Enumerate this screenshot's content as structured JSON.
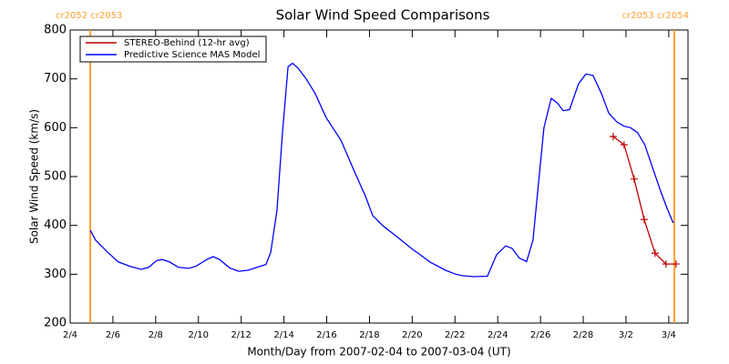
{
  "chart_data": {
    "type": "line",
    "title": "Solar Wind Speed Comparisons",
    "x_label": "Month/Day from 2007-02-04 to 2007-03-04 (UT)",
    "y_label": "Solar Wind Speed (km/s)",
    "xlim": [
      0,
      28.9
    ],
    "ylim": [
      200,
      800
    ],
    "xticks": [
      {
        "value": 0,
        "label": "2/4"
      },
      {
        "value": 2,
        "label": "2/6"
      },
      {
        "value": 4,
        "label": "2/8"
      },
      {
        "value": 6,
        "label": "2/10"
      },
      {
        "value": 8,
        "label": "2/12"
      },
      {
        "value": 10,
        "label": "2/14"
      },
      {
        "value": 12,
        "label": "2/16"
      },
      {
        "value": 14,
        "label": "2/18"
      },
      {
        "value": 16,
        "label": "2/20"
      },
      {
        "value": 18,
        "label": "2/22"
      },
      {
        "value": 20,
        "label": "2/24"
      },
      {
        "value": 22,
        "label": "2/26"
      },
      {
        "value": 24,
        "label": "2/28"
      },
      {
        "value": 26,
        "label": "3/2"
      },
      {
        "value": 28,
        "label": "3/4"
      }
    ],
    "yticks": [
      200,
      300,
      400,
      500,
      600,
      700,
      800
    ],
    "legend": "top-left",
    "markers": [
      {
        "x": 0.94,
        "label": "cr2052 cr2053",
        "color": "#ffa030"
      },
      {
        "x": 28.26,
        "label": "cr2053 cr2054",
        "color": "#ffa030"
      }
    ],
    "series": [
      {
        "name": "STEREO-Behind (12-hr avg)",
        "color": "#c00000",
        "point_marker": "+",
        "x": [
          25.4,
          25.91,
          26.38,
          26.85,
          27.36,
          27.87,
          28.34
        ],
        "values": [
          582,
          565,
          495,
          412,
          343,
          321,
          321
        ]
      },
      {
        "name": "Predictive Science MAS Model",
        "color": "#0000ff",
        "x": [
          0.94,
          1.19,
          1.75,
          2.26,
          2.81,
          3.32,
          3.67,
          4.05,
          4.31,
          4.65,
          5.07,
          5.54,
          5.88,
          6.39,
          6.69,
          6.99,
          7.46,
          7.88,
          8.31,
          8.74,
          9.16,
          9.38,
          9.67,
          9.93,
          10.19,
          10.4,
          10.66,
          11.04,
          11.46,
          11.98,
          12.66,
          13.3,
          13.81,
          14.15,
          14.66,
          15.34,
          15.98,
          16.37,
          16.83,
          17.56,
          18.03,
          18.33,
          18.88,
          19.52,
          19.95,
          20.37,
          20.67,
          21.01,
          21.35,
          21.65,
          22.16,
          22.5,
          22.8,
          23.06,
          23.36,
          23.78,
          24.12,
          24.46,
          24.85,
          25.19,
          25.57,
          25.91,
          26.21,
          26.54,
          26.88,
          27.23,
          27.62,
          27.92,
          28.21
        ],
        "values": [
          390,
          370,
          345,
          325,
          316,
          310,
          314,
          328,
          330,
          325,
          314,
          312,
          316,
          330,
          336,
          330,
          313,
          306,
          308,
          314,
          320,
          345,
          430,
          590,
          725,
          732,
          722,
          700,
          670,
          620,
          575,
          510,
          460,
          420,
          398,
          375,
          352,
          340,
          325,
          308,
          300,
          297,
          295,
          296,
          340,
          358,
          353,
          333,
          326,
          370,
          600,
          660,
          650,
          635,
          637,
          690,
          710,
          707,
          670,
          630,
          612,
          603,
          600,
          590,
          565,
          520,
          470,
          435,
          405
        ]
      }
    ]
  }
}
